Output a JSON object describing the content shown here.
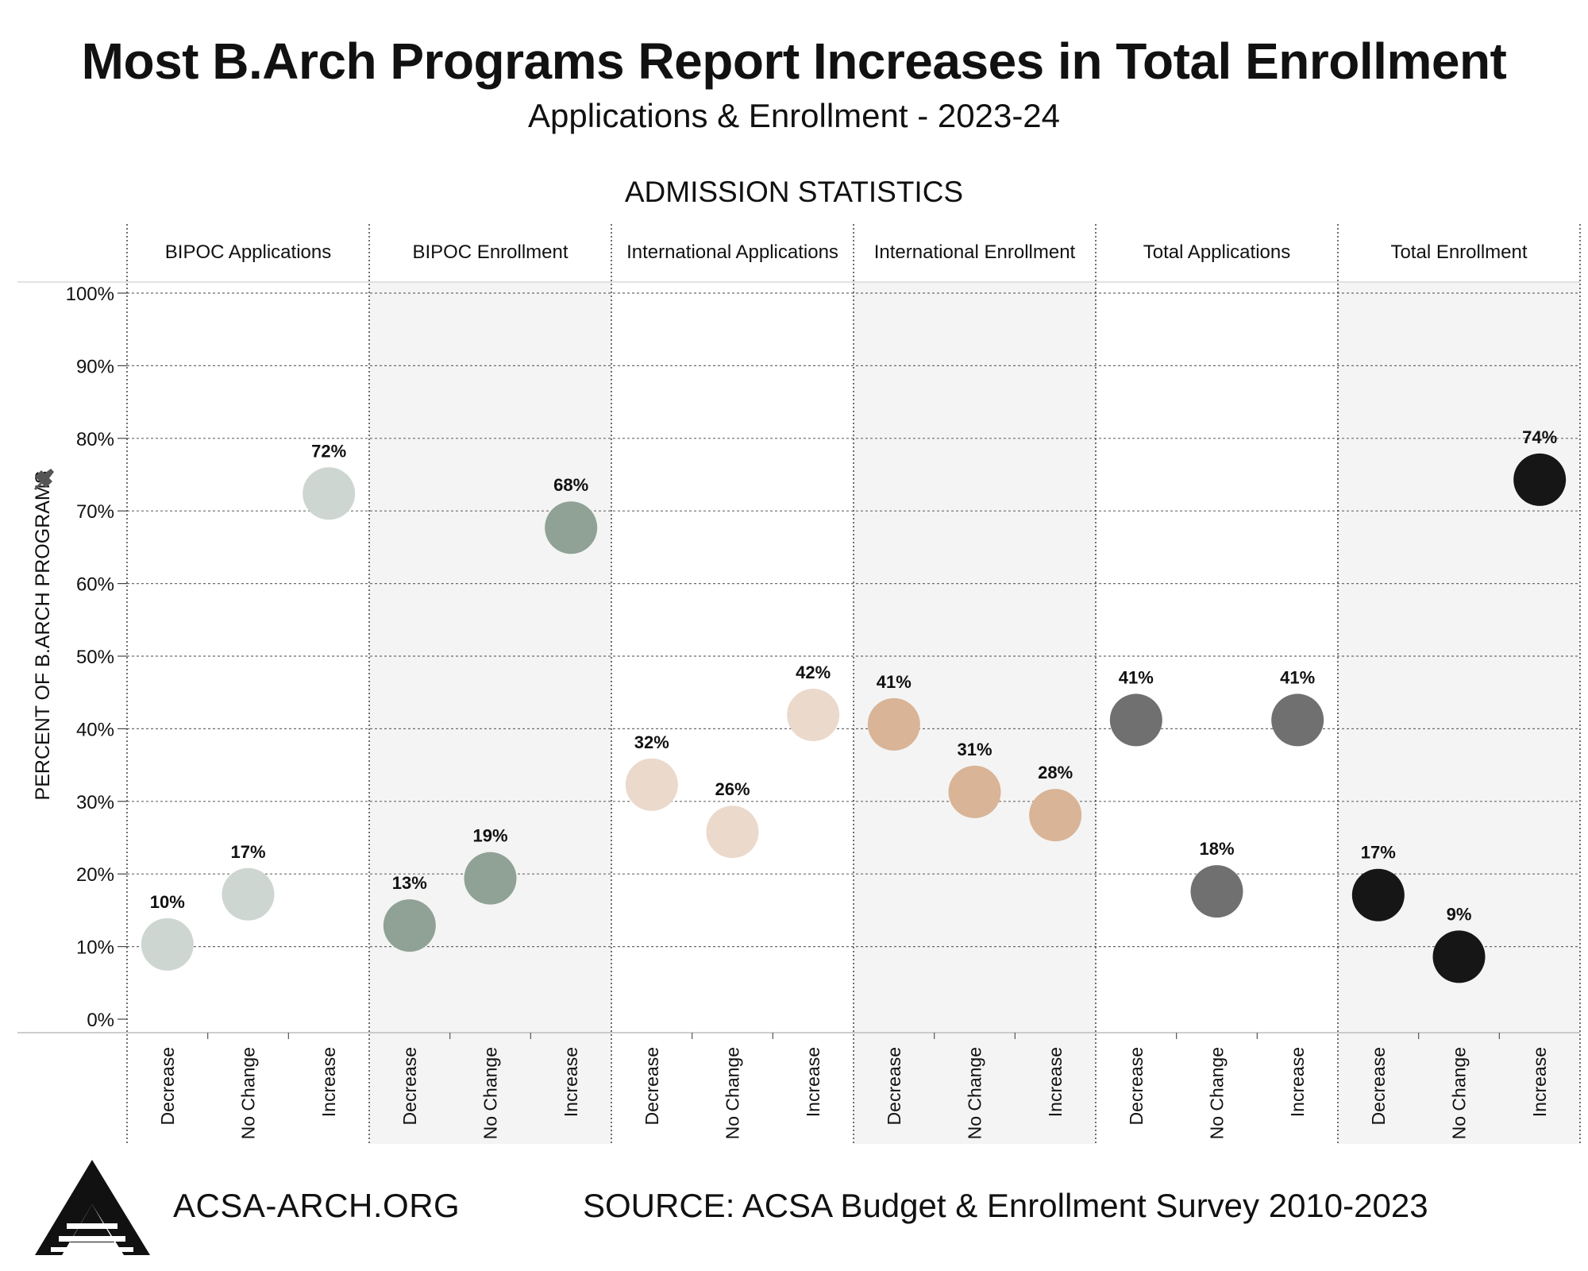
{
  "title": "Most B.Arch Programs Report Increases in Total Enrollment",
  "subtitle": "Applications & Enrollment - 2023-24",
  "footer": {
    "site": "ACSA-ARCH.ORG",
    "source": "SOURCE: ACSA Budget & Enrollment Survey 2010-2023"
  },
  "colors": {
    "bipoc_applications": "#cdd6d1",
    "bipoc_enrollment": "#8fa295",
    "international_applications": "#ebd9cc",
    "international_enrollment": "#d9b496",
    "total_applications": "#707070",
    "total_enrollment": "#151615",
    "shaded_panel": "#f4f4f4"
  },
  "chart_data": {
    "type": "scatter",
    "title": "ADMISSION STATISTICS",
    "ylabel": "PERCENT OF B.ARCH PROGRAMS",
    "ylim": [
      0,
      100
    ],
    "yticks": [
      "0%",
      "10%",
      "20%",
      "30%",
      "40%",
      "50%",
      "60%",
      "70%",
      "80%",
      "90%",
      "100%"
    ],
    "categories": [
      "Decrease",
      "No Change",
      "Increase"
    ],
    "grid": true,
    "panels": [
      {
        "name": "BIPOC Applications",
        "values": [
          10.3,
          17.2,
          72.4
        ],
        "labels": [
          "10%",
          "17%",
          "72%"
        ],
        "color_key": "bipoc_applications",
        "shaded": false
      },
      {
        "name": "BIPOC Enrollment",
        "values": [
          12.9,
          19.4,
          67.7
        ],
        "labels": [
          "13%",
          "19%",
          "68%"
        ],
        "color_key": "bipoc_enrollment",
        "shaded": true
      },
      {
        "name": "International Applications",
        "values": [
          32.3,
          25.8,
          41.9
        ],
        "labels": [
          "32%",
          "26%",
          "42%"
        ],
        "color_key": "international_applications",
        "shaded": false
      },
      {
        "name": "International Enrollment",
        "values": [
          40.6,
          31.3,
          28.1
        ],
        "labels": [
          "41%",
          "31%",
          "28%"
        ],
        "color_key": "international_enrollment",
        "shaded": true
      },
      {
        "name": "Total Applications",
        "values": [
          41.2,
          17.6,
          41.2
        ],
        "labels": [
          "41%",
          "18%",
          "41%"
        ],
        "color_key": "total_applications",
        "shaded": false
      },
      {
        "name": "Total Enrollment",
        "values": [
          17.1,
          8.6,
          74.3
        ],
        "labels": [
          "17%",
          "9%",
          "74%"
        ],
        "color_key": "total_enrollment",
        "shaded": true
      }
    ]
  }
}
